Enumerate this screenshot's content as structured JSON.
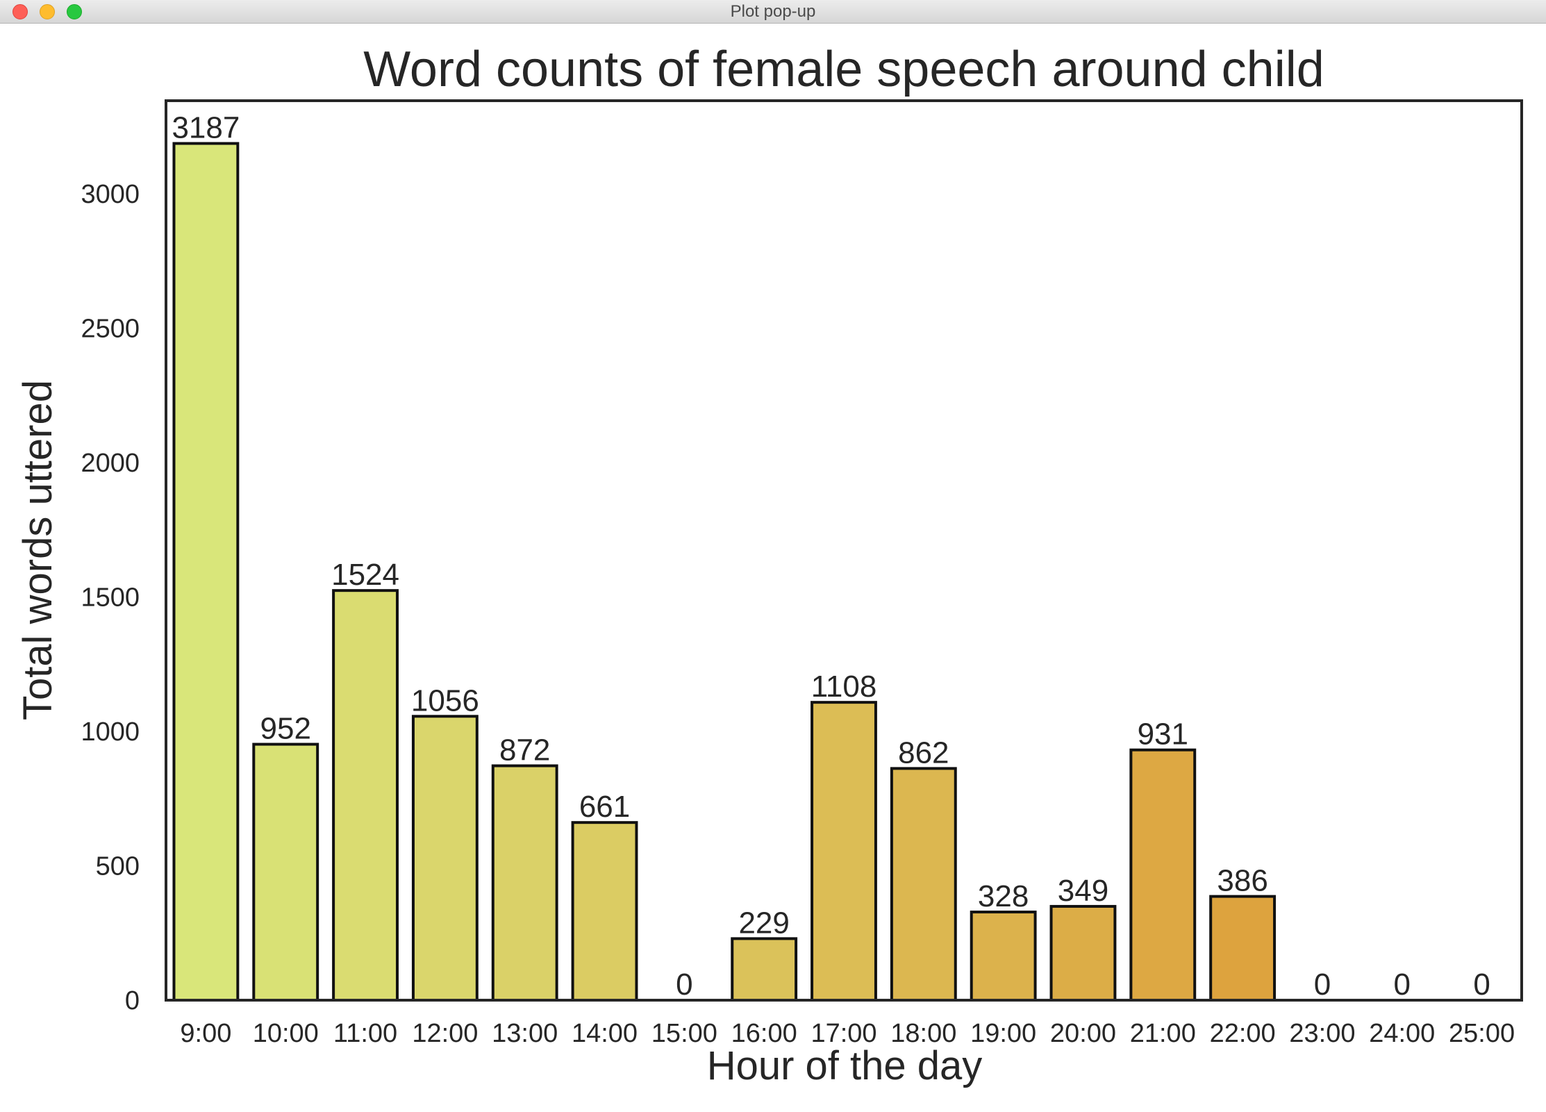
{
  "window": {
    "title": "Plot pop-up"
  },
  "colors": {
    "palette_start": "#d9e67a",
    "palette_end": "#de9330",
    "bar_edge": "#111111",
    "text": "#262626",
    "frame": "#262626"
  },
  "chart_data": {
    "type": "bar",
    "title": "Word counts of female speech around child",
    "xlabel": "Hour of the day",
    "ylabel": "Total words uttered",
    "categories": [
      "9:00",
      "10:00",
      "11:00",
      "12:00",
      "13:00",
      "14:00",
      "15:00",
      "16:00",
      "17:00",
      "18:00",
      "19:00",
      "20:00",
      "21:00",
      "22:00",
      "23:00",
      "24:00",
      "25:00"
    ],
    "values": [
      3187,
      952,
      1524,
      1056,
      872,
      661,
      0,
      229,
      1108,
      862,
      328,
      349,
      931,
      386,
      0,
      0,
      0
    ],
    "data_labels": [
      "3187",
      "952",
      "1524",
      "1056",
      "872",
      "661",
      "0",
      "229",
      "1108",
      "862",
      "328",
      "349",
      "931",
      "386",
      "0",
      "0",
      "0"
    ],
    "ylim": [
      0,
      3346
    ],
    "yticks": [
      0,
      500,
      1000,
      1500,
      2000,
      2500,
      3000
    ],
    "ytick_labels": [
      "0",
      "500",
      "1000",
      "1500",
      "2000",
      "2500",
      "3000"
    ],
    "grid": false,
    "legend": "none"
  }
}
